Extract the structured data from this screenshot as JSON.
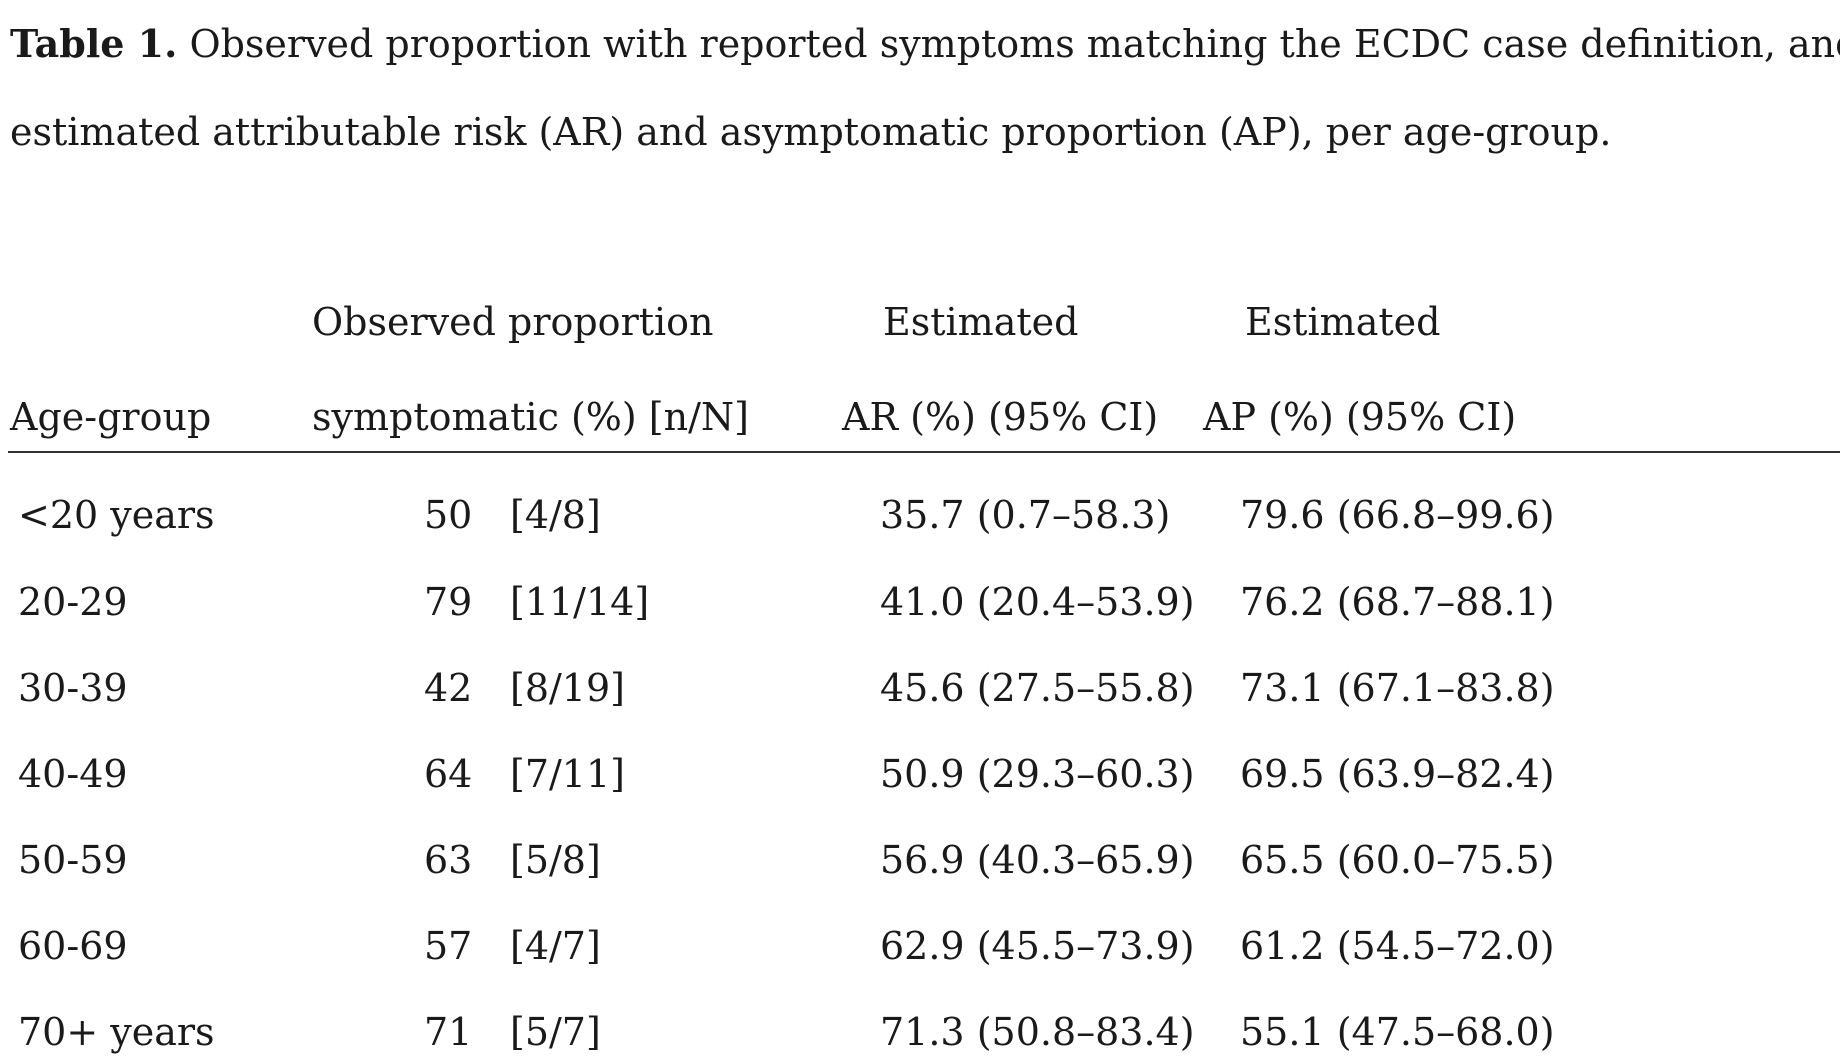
{
  "caption": {
    "label": "Table 1.",
    "line1": " Observed proportion with reported symptoms matching the ECDC case definition, and",
    "line2": "estimated attributable risk (AR) and asymptomatic proportion (AP), per age-group."
  },
  "table": {
    "headers": {
      "col1": "Age-group",
      "col2_line1": "Observed proportion",
      "col2_line2": "symptomatic (%) [n/N]",
      "col3_line1": "Estimated",
      "col3_line2": "AR (%) (95% CI)",
      "col4_line1": "Estimated",
      "col4_line2": "AP (%) (95% CI)"
    },
    "rows": [
      {
        "age": "<20 years",
        "pct": "50",
        "nN": "[4/8]",
        "ar": "35.7 (0.7–58.3)",
        "ap": "79.6 (66.8–99.6)"
      },
      {
        "age": "20-29",
        "pct": "79",
        "nN": "[11/14]",
        "ar": "41.0 (20.4–53.9)",
        "ap": "76.2 (68.7–88.1)"
      },
      {
        "age": "30-39",
        "pct": "42",
        "nN": "[8/19]",
        "ar": "45.6 (27.5–55.8)",
        "ap": "73.1 (67.1–83.8)"
      },
      {
        "age": "40-49",
        "pct": "64",
        "nN": "[7/11]",
        "ar": "50.9 (29.3–60.3)",
        "ap": "69.5 (63.9–82.4)"
      },
      {
        "age": "50-59",
        "pct": "63",
        "nN": "[5/8]",
        "ar": "56.9 (40.3–65.9)",
        "ap": "65.5 (60.0–75.5)"
      },
      {
        "age": "60-69",
        "pct": "57",
        "nN": "[4/7]",
        "ar": "62.9 (45.5–73.9)",
        "ap": "61.2 (54.5–72.0)"
      },
      {
        "age": "70+ years",
        "pct": "71",
        "nN": "[5/7]",
        "ar": "71.3 (50.8–83.4)",
        "ap": "55.1 (47.5–68.0)"
      }
    ]
  }
}
